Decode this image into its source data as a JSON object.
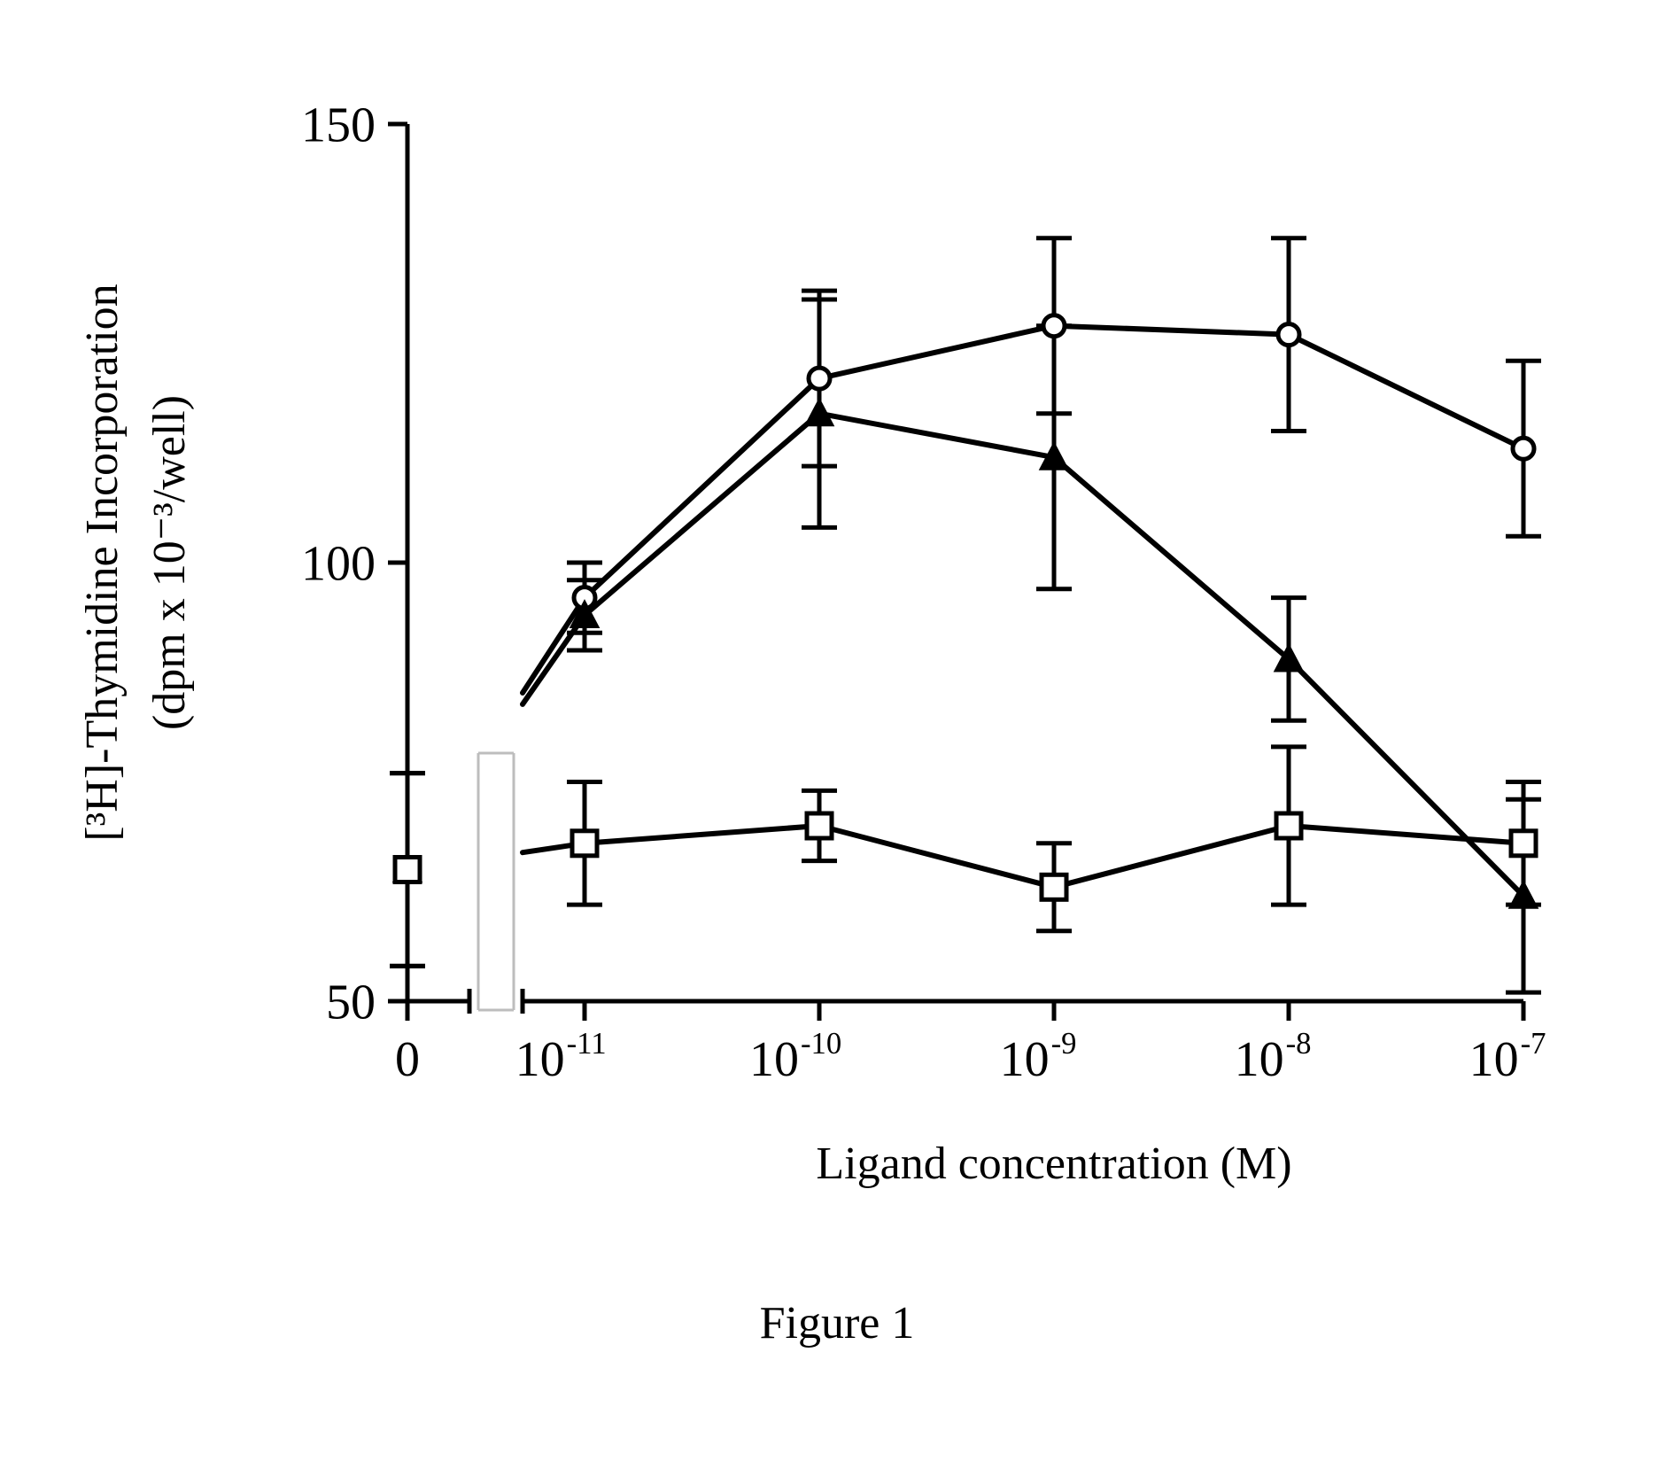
{
  "figure": {
    "caption": "Figure 1",
    "caption_fontsize": 52,
    "background_color": "#ffffff",
    "ink_color": "#000000",
    "ylabel_line1": "[³H]-Thymidine Incorporation",
    "ylabel_line2": "(dpm x 10⁻³/well)",
    "ylabel_fontsize": 52,
    "xlabel": "Ligand concentration (M)",
    "xlabel_fontsize": 52,
    "ylim": [
      50,
      150
    ],
    "yticks": [
      50,
      100,
      150
    ],
    "ytick_labels": [
      "50",
      "100",
      "150"
    ],
    "ytick_fontsize": 56,
    "x_categories": [
      "0",
      "1e-11",
      "1e-10",
      "1e-9",
      "1e-8",
      "1e-7"
    ],
    "x_tick_labels": [
      {
        "plain": "0"
      },
      {
        "base": "10",
        "sup": "-11"
      },
      {
        "base": "10",
        "sup": "-10"
      },
      {
        "base": "10",
        "sup": "-9"
      },
      {
        "base": "10",
        "sup": "-8"
      },
      {
        "base": "10",
        "sup": "-7"
      }
    ],
    "xtick_fontsize": 56,
    "axis_linewidth": 5,
    "tick_length": 22,
    "axis_break": true,
    "axis_break_between_index": [
      0,
      1
    ],
    "series": [
      {
        "name": "series-circle",
        "marker": "circle",
        "marker_size": 12,
        "marker_fill": "#ffffff",
        "marker_stroke": "#000000",
        "line_color": "#000000",
        "line_width": 6,
        "y": [
          65,
          96,
          121,
          127,
          126,
          113
        ],
        "err": [
          11,
          4,
          10,
          10,
          11,
          10
        ]
      },
      {
        "name": "series-triangle",
        "marker": "triangle",
        "marker_size": 14,
        "marker_fill": "#000000",
        "marker_stroke": "#000000",
        "line_color": "#000000",
        "line_width": 6,
        "y": [
          65,
          94,
          117,
          112,
          89,
          62
        ],
        "err": [
          11,
          4,
          13,
          15,
          7,
          11
        ]
      },
      {
        "name": "series-square",
        "marker": "square",
        "marker_size": 14,
        "marker_fill": "#ffffff",
        "marker_stroke": "#000000",
        "line_color": "#000000",
        "line_width": 6,
        "y": [
          65,
          68,
          70,
          63,
          70,
          68
        ],
        "err": [
          11,
          7,
          4,
          5,
          9,
          7
        ]
      }
    ]
  }
}
